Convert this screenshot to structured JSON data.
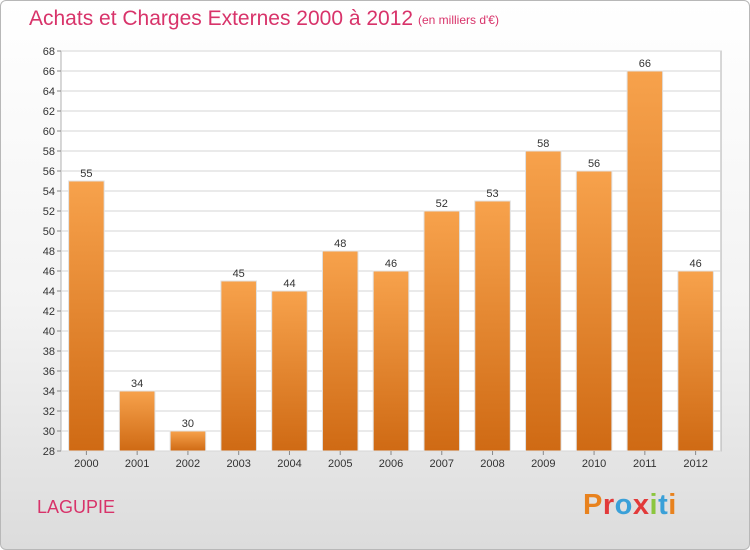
{
  "header": {
    "title": "Achats et Charges Externes 2000 à 2012",
    "subtitle": "(en milliers d'€)"
  },
  "footer": {
    "commune": "LAGUPIE",
    "logo_text": "Proxiti",
    "logo_colors": [
      "#e8821e",
      "#e23a3a",
      "#3aa0d8",
      "#e23a3a",
      "#8cc63e",
      "#3aa0d8",
      "#e8821e"
    ]
  },
  "colors": {
    "bar_top": "#f7a24c",
    "bar_bottom": "#cf6a14",
    "grid": "#d6d6d6"
  },
  "chart_data": {
    "type": "bar",
    "categories": [
      "2000",
      "2001",
      "2002",
      "2003",
      "2004",
      "2005",
      "2006",
      "2007",
      "2008",
      "2009",
      "2010",
      "2011",
      "2012"
    ],
    "values": [
      55,
      34,
      30,
      45,
      44,
      48,
      46,
      52,
      53,
      58,
      56,
      66,
      46
    ],
    "title": "Achats et Charges Externes 2000 à 2012",
    "ylim": [
      28,
      68
    ],
    "yticks": [
      28,
      30,
      32,
      34,
      36,
      38,
      40,
      42,
      44,
      46,
      48,
      50,
      52,
      54,
      56,
      58,
      60,
      62,
      64,
      66,
      68
    ],
    "grid": true,
    "data_labels": true
  }
}
